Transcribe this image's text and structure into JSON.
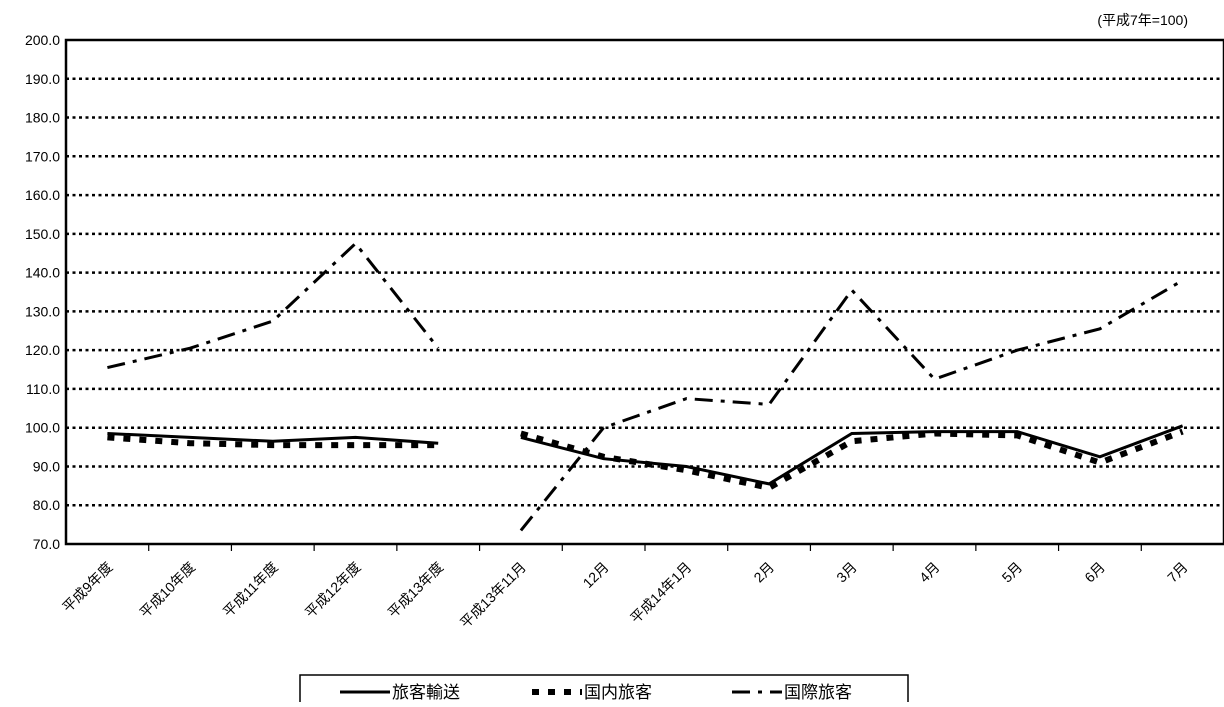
{
  "chart_data": {
    "type": "line",
    "title": "",
    "unit_note": "(平成7年=100)",
    "xlabel": "",
    "ylabel": "",
    "ylim": [
      70,
      200
    ],
    "y_ticks": [
      70,
      80,
      90,
      100,
      110,
      120,
      130,
      140,
      150,
      160,
      170,
      180,
      190,
      200
    ],
    "y_tick_format": "one_decimal",
    "grid": true,
    "legend_position": "bottom",
    "categories": [
      "平成9年度",
      "平成10年度",
      "平成11年度",
      "平成12年度",
      "平成13年度",
      "平成13年11月",
      "12月",
      "平成14年1月",
      "2月",
      "3月",
      "4月",
      "5月",
      "6月",
      "7月"
    ],
    "series": [
      {
        "name": "旅客輸送",
        "style": "solid",
        "color": "#000000",
        "values": [
          98.5,
          97.5,
          96.5,
          97.5,
          96.0,
          97.5,
          92.0,
          90.0,
          85.5,
          98.5,
          99.0,
          99.0,
          92.5,
          100.5
        ]
      },
      {
        "name": "国内旅客",
        "style": "dotted",
        "color": "#000000",
        "values": [
          97.5,
          96.0,
          95.5,
          95.5,
          95.5,
          98.5,
          92.5,
          89.0,
          84.5,
          96.5,
          98.5,
          98.0,
          91.0,
          99.0
        ]
      },
      {
        "name": "国際旅客",
        "style": "dashdot",
        "color": "#000000",
        "values": [
          115.5,
          120.5,
          127.5,
          147.5,
          120.5,
          73.5,
          100.0,
          107.5,
          106.0,
          135.5,
          112.5,
          120.0,
          125.5,
          138.0
        ]
      }
    ],
    "segments": [
      [
        0,
        4
      ],
      [
        5,
        13
      ]
    ]
  }
}
